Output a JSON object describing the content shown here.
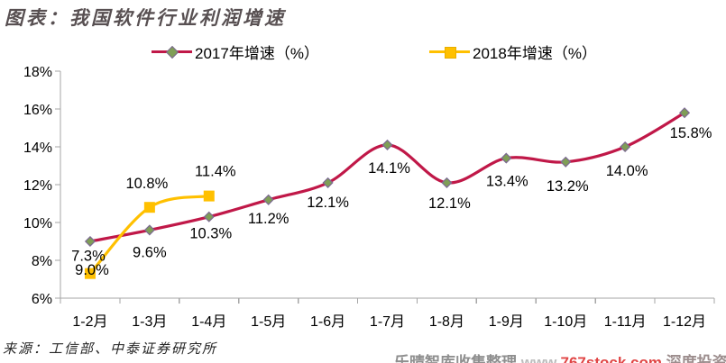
{
  "header": {
    "title": "图表：我国软件行业利润增速"
  },
  "legend": [
    {
      "label": "2017年增速（%）",
      "line_color": "#C01848",
      "marker": "diamond",
      "marker_fill": "#7F9E56",
      "marker_stroke": "#7C6992"
    },
    {
      "label": "2018年增速（%）",
      "line_color": "#FFC000",
      "marker": "square",
      "marker_fill": "#FFC000",
      "marker_stroke": "#E8AE00"
    }
  ],
  "chart_data": {
    "type": "line",
    "title": "图表：我国软件行业利润增速",
    "categories": [
      "1-2月",
      "1-3月",
      "1-4月",
      "1-5月",
      "1-6月",
      "1-7月",
      "1-8月",
      "1-9月",
      "1-10月",
      "1-11月",
      "1-12月"
    ],
    "series": [
      {
        "name": "2017年增速（%）",
        "color": "#C01848",
        "marker": {
          "shape": "diamond",
          "fill": "#7F9E56",
          "stroke": "#7C6992"
        },
        "values": [
          9.0,
          9.6,
          10.3,
          11.2,
          12.1,
          14.1,
          12.1,
          13.4,
          13.2,
          14.0,
          15.8
        ],
        "labels": [
          "9.0%",
          "9.6%",
          "10.3%",
          "11.2%",
          "12.1%",
          "14.1%",
          "12.1%",
          "13.4%",
          "13.2%",
          "14.0%",
          "15.8%"
        ],
        "label_offsets": [
          [
            2,
            37
          ],
          [
            0,
            30
          ],
          [
            2,
            24
          ],
          [
            0,
            26
          ],
          [
            0,
            27
          ],
          [
            2,
            31
          ],
          [
            3,
            28
          ],
          [
            1,
            31
          ],
          [
            2,
            32
          ],
          [
            2,
            32
          ],
          [
            7,
            28
          ]
        ]
      },
      {
        "name": "2018年增速（%）",
        "color": "#FFC000",
        "marker": {
          "shape": "square",
          "fill": "#FFC000",
          "stroke": "#FFC000"
        },
        "values": [
          7.3,
          10.8,
          11.4
        ],
        "labels": [
          "7.3%",
          "10.8%",
          "11.4%"
        ],
        "label_offsets": [
          [
            -2,
            -14
          ],
          [
            -3,
            -21
          ],
          [
            7,
            -22
          ]
        ]
      }
    ],
    "xlabel": "",
    "ylabel": "",
    "ylim": [
      6,
      18
    ],
    "ytick_step": 2,
    "ytick_suffix": "%",
    "grid": false,
    "smooth": true,
    "legend_position": "top",
    "axis_color": "#A6A6A6",
    "label_color": "#000000"
  },
  "footer": {
    "source": "来源：工信部、中泰证券研究所"
  },
  "watermark": {
    "prefix": "乐晴智库收集整理",
    "www": " www.",
    "url": "767stock.com",
    "suffix": " 深度投资"
  }
}
